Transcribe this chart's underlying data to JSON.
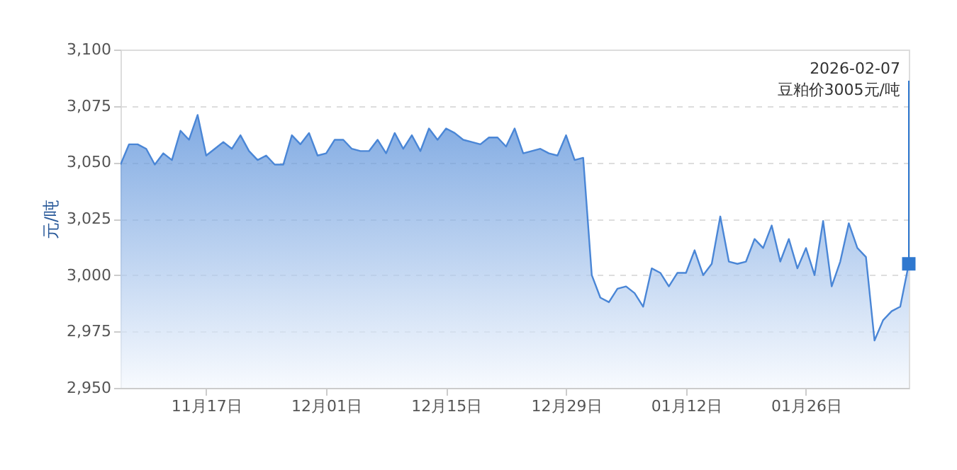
{
  "chart_data": {
    "type": "area",
    "ylabel": "元/吨",
    "x": [
      "2025-11-07",
      "2025-11-08",
      "2025-11-09",
      "2025-11-10",
      "2025-11-11",
      "2025-11-12",
      "2025-11-13",
      "2025-11-14",
      "2025-11-15",
      "2025-11-16",
      "2025-11-17",
      "2025-11-18",
      "2025-11-19",
      "2025-11-20",
      "2025-11-21",
      "2025-11-22",
      "2025-11-23",
      "2025-11-24",
      "2025-11-25",
      "2025-11-26",
      "2025-11-27",
      "2025-11-28",
      "2025-11-29",
      "2025-11-30",
      "2025-12-01",
      "2025-12-02",
      "2025-12-03",
      "2025-12-04",
      "2025-12-05",
      "2025-12-06",
      "2025-12-07",
      "2025-12-08",
      "2025-12-09",
      "2025-12-10",
      "2025-12-11",
      "2025-12-12",
      "2025-12-13",
      "2025-12-14",
      "2025-12-15",
      "2025-12-16",
      "2025-12-17",
      "2025-12-18",
      "2025-12-19",
      "2025-12-20",
      "2025-12-21",
      "2025-12-22",
      "2025-12-23",
      "2025-12-24",
      "2025-12-25",
      "2025-12-26",
      "2025-12-27",
      "2025-12-28",
      "2025-12-29",
      "2025-12-30",
      "2025-12-31",
      "2026-01-01",
      "2026-01-02",
      "2026-01-03",
      "2026-01-04",
      "2026-01-05",
      "2026-01-06",
      "2026-01-07",
      "2026-01-08",
      "2026-01-09",
      "2026-01-10",
      "2026-01-11",
      "2026-01-12",
      "2026-01-13",
      "2026-01-14",
      "2026-01-15",
      "2026-01-16",
      "2026-01-17",
      "2026-01-18",
      "2026-01-19",
      "2026-01-20",
      "2026-01-21",
      "2026-01-22",
      "2026-01-23",
      "2026-01-24",
      "2026-01-25",
      "2026-01-26",
      "2026-01-27",
      "2026-01-28",
      "2026-01-29",
      "2026-01-30",
      "2026-01-31",
      "2026-02-01",
      "2026-02-02",
      "2026-02-03",
      "2026-02-04",
      "2026-02-05",
      "2026-02-06",
      "2026-02-07"
    ],
    "series": [
      {
        "color": "#4a86d6",
        "values": [
          3049,
          3058,
          3058,
          3056,
          3049,
          3054,
          3051,
          3064,
          3060,
          3071,
          3053,
          3056,
          3059,
          3056,
          3062,
          3055,
          3051,
          3053,
          3049,
          3049,
          3062,
          3058,
          3063,
          3053,
          3054,
          3060,
          3060,
          3056,
          3055,
          3055,
          3060,
          3054,
          3063,
          3056,
          3062,
          3055,
          3065,
          3060,
          3065,
          3063,
          3060,
          3059,
          3058,
          3061,
          3061,
          3057,
          3065,
          3054,
          3055,
          3056,
          3054,
          3053,
          3062,
          3051,
          3052,
          3000,
          2990,
          2988,
          2994,
          2995,
          2992,
          2986,
          3003,
          3001,
          2995,
          3001,
          3001,
          3011,
          3000,
          3005,
          3026,
          3006,
          3005,
          3006,
          3016,
          3012,
          3022,
          3006,
          3016,
          3003,
          3012,
          3000,
          3024,
          2995,
          3006,
          3023,
          3012,
          3008,
          2971,
          2980,
          2984,
          2986,
          3005
        ]
      }
    ],
    "xlim": [
      "2025-11-07",
      "2026-02-07"
    ],
    "xticks": [
      {
        "value": "2025-11-17",
        "label": "11月17日"
      },
      {
        "value": "2025-12-01",
        "label": "12月01日"
      },
      {
        "value": "2025-12-15",
        "label": "12月15日"
      },
      {
        "value": "2025-12-29",
        "label": "12月29日"
      },
      {
        "value": "2026-01-12",
        "label": "01月12日"
      },
      {
        "value": "2026-01-26",
        "label": "01月26日"
      }
    ],
    "ylim": [
      2950,
      3100
    ],
    "yticks": [
      {
        "value": 2950,
        "label": "2,950"
      },
      {
        "value": 2975,
        "label": "2,975"
      },
      {
        "value": 3000,
        "label": "3,000"
      },
      {
        "value": 3025,
        "label": "3,025"
      },
      {
        "value": 3050,
        "label": "3,050"
      },
      {
        "value": 3075,
        "label": "3,075"
      },
      {
        "value": 3100,
        "label": "3,100"
      }
    ],
    "grid": "y",
    "annotations": [
      {
        "text": "2026-02-07\n豆粕价3005元/吨",
        "x": "2026-02-07",
        "y": 3005
      }
    ]
  }
}
